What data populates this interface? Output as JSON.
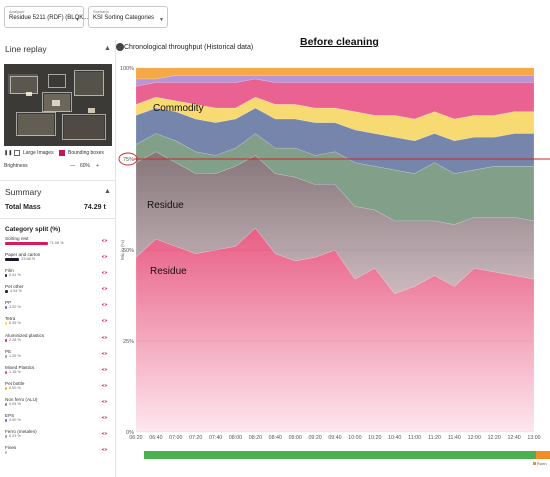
{
  "header": {
    "analyser_label": "Analyser",
    "analyser_value": "Residue 5211 (RDF) (BLOK...",
    "scenario_label": "Scenario",
    "scenario_value": "KSI Sorting Categories"
  },
  "line_replay": {
    "title": "Line replay",
    "large_images": "Large Images",
    "bounding_boxes": "Bounding boxes",
    "brightness_label": "Brightness",
    "brightness_value": "60%"
  },
  "summary": {
    "title": "Summary",
    "total_mass_label": "Total Mass",
    "total_mass_value": "74.29 t"
  },
  "category_split": {
    "title": "Category split (%)",
    "items": [
      {
        "name": "Sorting rest",
        "pct": "71.08 %",
        "share": 71.08,
        "color": "#d81b60"
      },
      {
        "name": "Paper and carton",
        "pct": "23.68 %",
        "share": 23.68,
        "color": "#1a1a2e"
      },
      {
        "name": "Film",
        "pct": "0.41 %",
        "share": 0.41,
        "color": "#263238"
      },
      {
        "name": "Pet other",
        "pct": "4.94 %",
        "share": 4.94,
        "color": "#1f2a44"
      },
      {
        "name": "PP",
        "pct": "3.52 %",
        "share": 3.52,
        "color": "#5c6bc0"
      },
      {
        "name": "Tetra",
        "pct": "0.35 %",
        "share": 0.35,
        "color": "#fdd835"
      },
      {
        "name": "Aluminized plastics",
        "pct": "2.28 %",
        "share": 2.28,
        "color": "#e91e63"
      },
      {
        "name": "PE",
        "pct": "1.25 %",
        "share": 1.25,
        "color": "#90a4ae"
      },
      {
        "name": "Mixed Plastics",
        "pct": "1.16 %",
        "share": 1.16,
        "color": "#ec407a"
      },
      {
        "name": "Pet bottle",
        "pct": "0.00 %",
        "share": 0.0,
        "color": "#ffb300"
      },
      {
        "name": "Non ferro (ALU)",
        "pct": "0.04 %",
        "share": 0.04,
        "color": "#78909c"
      },
      {
        "name": "EPS",
        "pct": "0.00 %",
        "share": 0.0,
        "color": "#7e57c2"
      },
      {
        "name": "Ferro (metalen)",
        "pct": "0.23 %",
        "share": 0.23,
        "color": "#9e9e9e"
      },
      {
        "name": "Fines",
        "pct": "",
        "share": 0.0,
        "color": "#bdbdbd"
      }
    ]
  },
  "main": {
    "title": "Chronological throughput (Historical data)",
    "annotation": "Before cleaning",
    "legend_running": "Runn"
  },
  "chart_data": {
    "type": "area",
    "ylabel": "Mix in (%)",
    "y_ticks": [
      "0%",
      "25%",
      "50%",
      "75%",
      "100%"
    ],
    "x": [
      "06:20",
      "06:40",
      "07:00",
      "07:20",
      "07:40",
      "08:00",
      "08:20",
      "08:40",
      "09:00",
      "09:20",
      "09:40",
      "10:00",
      "10:20",
      "10:40",
      "11:00",
      "11:20",
      "11:40",
      "12:00",
      "12:20",
      "12:40",
      "13:00"
    ],
    "annotations": [
      "Commodity",
      "Residue",
      "Residue"
    ],
    "reference_line_y": 75,
    "series": [
      {
        "color": "#e8557e",
        "values": [
          48,
          53,
          51,
          49,
          50,
          51,
          56,
          49,
          47,
          48,
          50,
          42,
          45,
          38,
          40,
          43,
          40,
          45,
          44,
          43,
          42
        ]
      },
      {
        "color": "#8a7d7f",
        "values": [
          26,
          24,
          23,
          22,
          21,
          22,
          20,
          22,
          23,
          20,
          18,
          20,
          16,
          20,
          18,
          15,
          17,
          14,
          15,
          16,
          16
        ]
      },
      {
        "color": "#7c9a84",
        "values": [
          5,
          5,
          6,
          6,
          5,
          5,
          6,
          7,
          8,
          8,
          9,
          12,
          12,
          14,
          13,
          16,
          14,
          13,
          14,
          14,
          15
        ]
      },
      {
        "color": "#6e7fa8",
        "values": [
          8,
          7,
          8,
          9,
          9,
          8,
          7,
          8,
          8,
          9,
          8,
          9,
          9,
          9,
          9,
          8,
          9,
          9,
          8,
          9,
          9
        ]
      },
      {
        "color": "#f7d96b",
        "values": [
          3,
          3,
          3,
          4,
          4,
          3,
          3,
          4,
          4,
          4,
          4,
          5,
          5,
          6,
          6,
          6,
          6,
          6,
          6,
          6,
          6
        ]
      },
      {
        "color": "#e95a8c",
        "values": [
          5,
          4,
          5,
          6,
          7,
          7,
          5,
          6,
          6,
          7,
          7,
          8,
          9,
          9,
          10,
          8,
          10,
          9,
          9,
          8,
          8
        ]
      },
      {
        "color": "#b58fd6",
        "values": [
          2,
          1,
          2,
          2,
          2,
          2,
          1,
          2,
          2,
          2,
          2,
          2,
          2,
          2,
          2,
          2,
          2,
          2,
          2,
          2,
          2
        ]
      },
      {
        "color": "#f5a43a",
        "values": [
          3,
          3,
          2,
          2,
          2,
          2,
          2,
          2,
          2,
          2,
          2,
          2,
          2,
          2,
          2,
          2,
          2,
          2,
          2,
          2,
          2
        ]
      }
    ]
  }
}
